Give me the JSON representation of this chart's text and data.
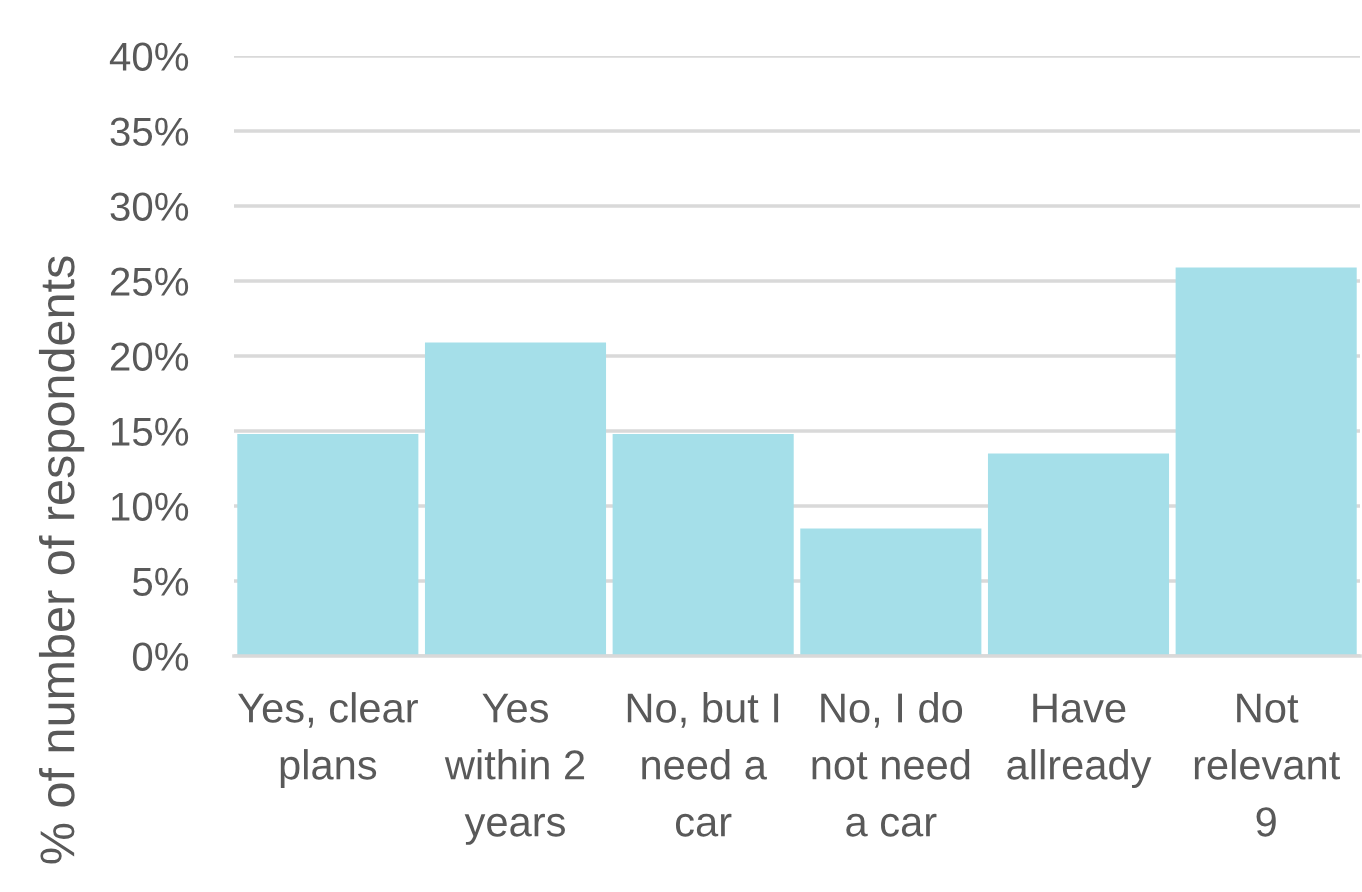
{
  "chart_data": {
    "type": "bar",
    "ylabel": "% of number of respondents",
    "categories": [
      "Yes, clear\nplans",
      "Yes\nwithin 2\nyears",
      "No, but I\nneed a\ncar",
      "No, I do\nnot need\na car",
      "Have\nallready",
      "Not\nrelevant\n9"
    ],
    "values": [
      14.8,
      20.9,
      14.8,
      8.5,
      13.5,
      25.9
    ],
    "color": "#a5dfe9",
    "ylim": [
      0,
      40
    ],
    "yticks": [
      {
        "value": 0,
        "label": "0%"
      },
      {
        "value": 5,
        "label": "5%"
      },
      {
        "value": 10,
        "label": "10%"
      },
      {
        "value": 15,
        "label": "15%"
      },
      {
        "value": 20,
        "label": "20%"
      },
      {
        "value": 25,
        "label": "25%"
      },
      {
        "value": 30,
        "label": "30%"
      },
      {
        "value": 35,
        "label": "35%"
      },
      {
        "value": 40,
        "label": "40%"
      }
    ],
    "grid": "y"
  }
}
